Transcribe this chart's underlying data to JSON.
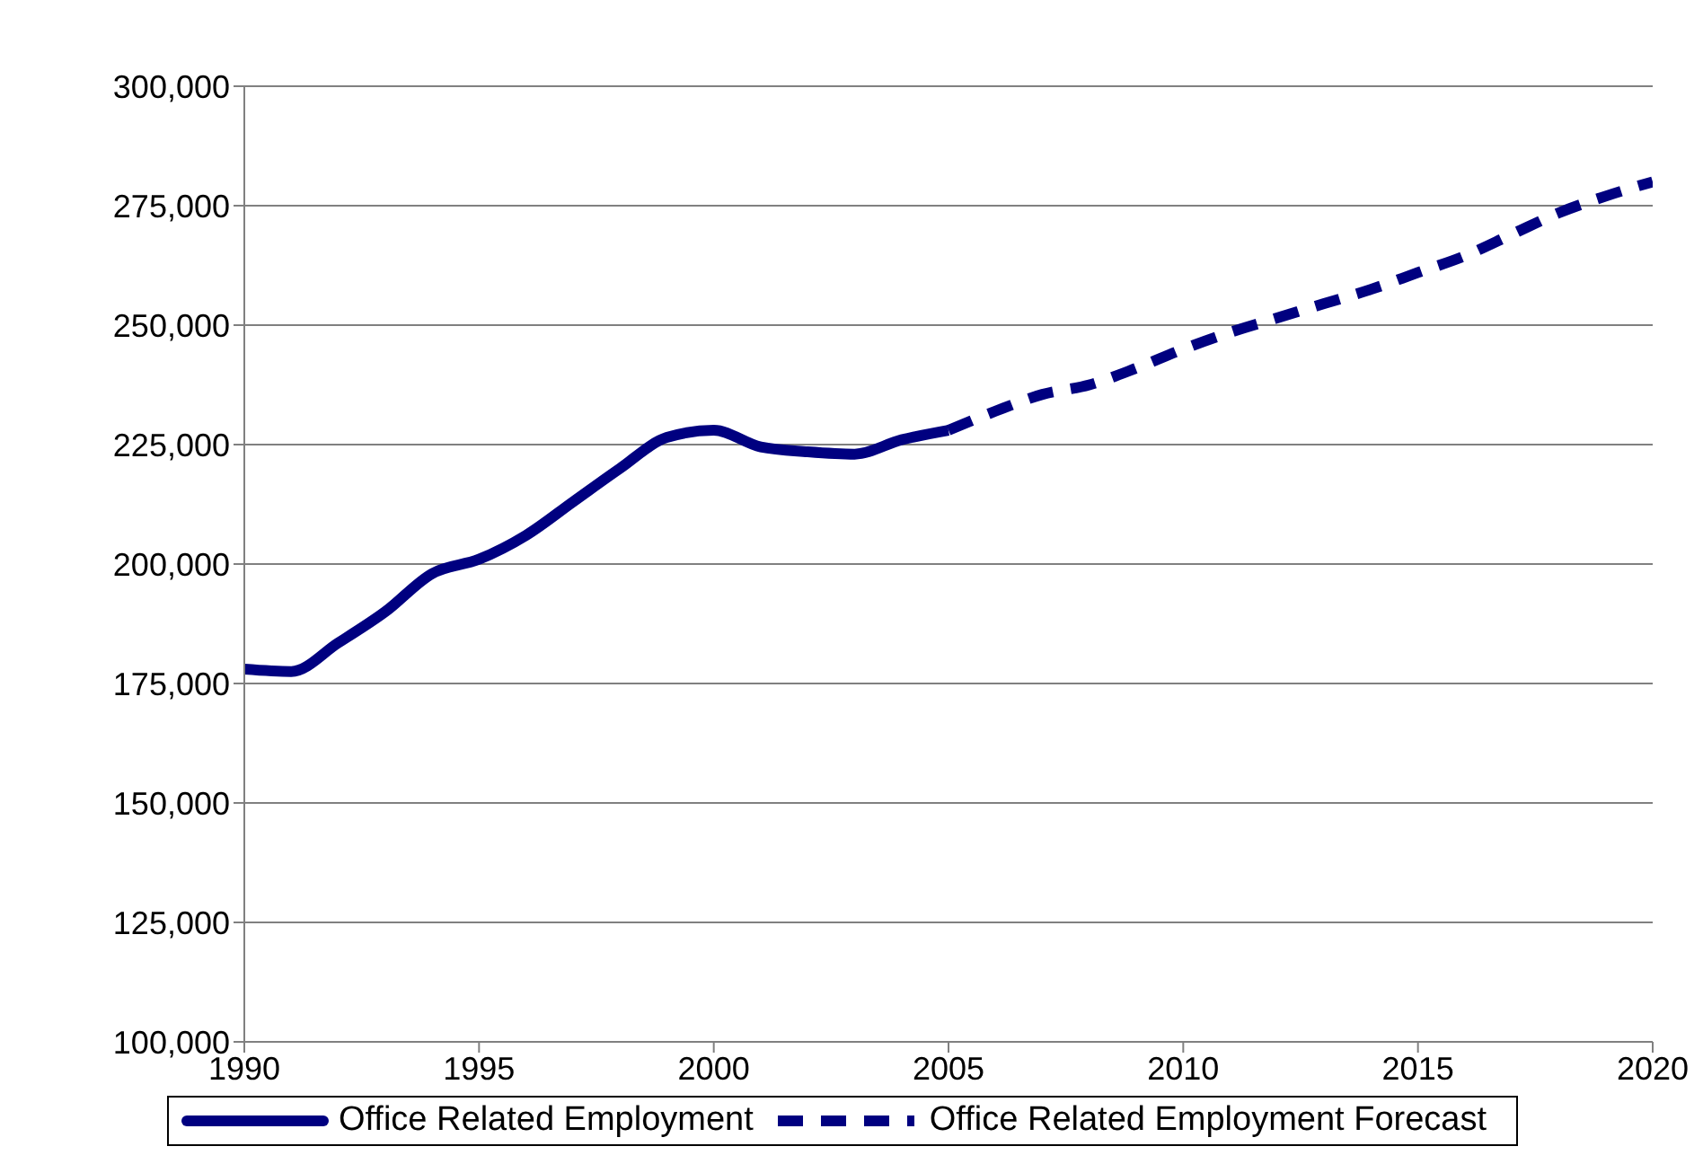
{
  "chart_data": {
    "type": "line",
    "xlim": [
      1990,
      2020
    ],
    "xticks": [
      1990,
      1995,
      2000,
      2005,
      2010,
      2015,
      2020
    ],
    "ylim": [
      100000,
      300000
    ],
    "yticks": [
      {
        "value": 100000,
        "label": "100,000"
      },
      {
        "value": 125000,
        "label": "125,000"
      },
      {
        "value": 150000,
        "label": "150,000"
      },
      {
        "value": 175000,
        "label": "175,000"
      },
      {
        "value": 200000,
        "label": "200,000"
      },
      {
        "value": 225000,
        "label": "225,000"
      },
      {
        "value": 250000,
        "label": "250,000"
      },
      {
        "value": 275000,
        "label": "275,000"
      },
      {
        "value": 300000,
        "label": "300,000"
      }
    ],
    "grid": "y",
    "legend": "bottom",
    "series": [
      {
        "name": "Office Related Employment",
        "color": "#000080",
        "line_style": "solid",
        "x": [
          1990,
          1991,
          1992,
          1993,
          1994,
          1995,
          1996,
          1997,
          1998,
          1999,
          2000,
          2001,
          2002,
          2003,
          2004,
          2005
        ],
        "values": [
          178000,
          177500,
          183500,
          190000,
          198000,
          201000,
          206000,
          213000,
          220000,
          226500,
          228000,
          224500,
          223500,
          223000,
          226000,
          228000
        ]
      },
      {
        "name": "Office Related Employment Forecast",
        "color": "#000080",
        "line_style": "dashed",
        "x": [
          2005,
          2006,
          2007,
          2008,
          2009,
          2010,
          2011,
          2012,
          2013,
          2014,
          2015,
          2016,
          2017,
          2018,
          2019,
          2020
        ],
        "values": [
          228000,
          232000,
          235500,
          237500,
          241000,
          245000,
          248500,
          251500,
          254500,
          257500,
          261000,
          264500,
          269000,
          273500,
          277000,
          280000
        ]
      }
    ]
  }
}
